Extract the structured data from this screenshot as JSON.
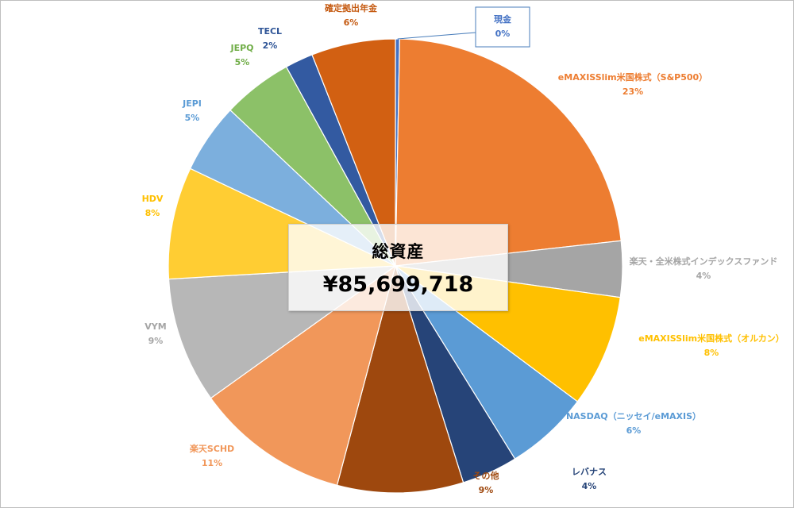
{
  "chart_data": {
    "type": "pie",
    "title": "",
    "center": {
      "title": "総資産",
      "value": "¥85,699,718"
    },
    "slices": [
      {
        "name": "現金",
        "label": "0%",
        "value": 0.3,
        "color": "#4472c4",
        "label_color": "#4472c4"
      },
      {
        "name": "eMAXISSlim米国株式（S&P500）",
        "label": "23%",
        "value": 23,
        "color": "#ed7d31",
        "label_color": "#ed7d31"
      },
      {
        "name": "楽天・全米株式インデックスファンド",
        "label": "4%",
        "value": 4,
        "color": "#a5a5a5",
        "label_color": "#a5a5a5"
      },
      {
        "name": "eMAXISSlim米国株式（オルカン）",
        "label": "8%",
        "value": 8,
        "color": "#ffc000",
        "label_color": "#ffc000"
      },
      {
        "name": "NASDAQ（ニッセイ/eMAXIS）",
        "label": "6%",
        "value": 6,
        "color": "#5b9bd5",
        "label_color": "#5b9bd5"
      },
      {
        "name": "レバナス",
        "label": "4%",
        "value": 4,
        "color": "#264478",
        "label_color": "#264478"
      },
      {
        "name": "その他",
        "label": "9%",
        "value": 9,
        "color": "#9e480e",
        "label_color": "#9e480e"
      },
      {
        "name": "楽天SCHD",
        "label": "11%",
        "value": 11,
        "color": "#f1975a",
        "label_color": "#f1975a"
      },
      {
        "name": "VYM",
        "label": "9%",
        "value": 9,
        "color": "#b7b7b7",
        "label_color": "#a5a5a5"
      },
      {
        "name": "HDV",
        "label": "8%",
        "value": 8,
        "color": "#ffcd33",
        "label_color": "#ffc000"
      },
      {
        "name": "JEPI",
        "label": "5%",
        "value": 5,
        "color": "#7cafdd",
        "label_color": "#5b9bd5"
      },
      {
        "name": "JEPQ",
        "label": "5%",
        "value": 5,
        "color": "#8cc168",
        "label_color": "#70ad47"
      },
      {
        "name": "TECL",
        "label": "2%",
        "value": 2,
        "color": "#335aa1",
        "label_color": "#2f5597"
      },
      {
        "name": "確定拠出年金",
        "label": "6%",
        "value": 6,
        "color": "#d26012",
        "label_color": "#c55a11"
      }
    ]
  }
}
